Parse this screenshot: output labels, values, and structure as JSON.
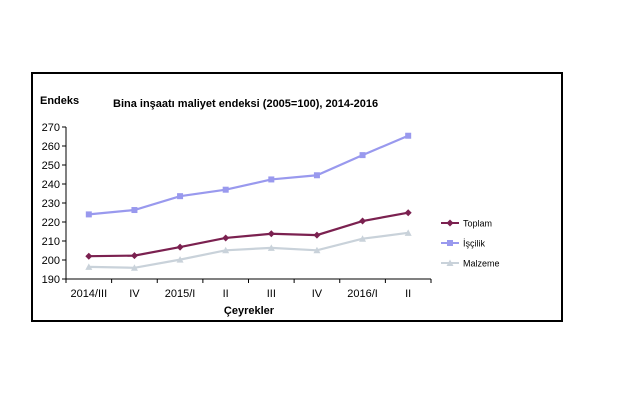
{
  "chart_data": {
    "type": "line",
    "title": "Bina inşaatı maliyet endeksi (2005=100), 2014-2016",
    "ylabel": "Endeks",
    "xlabel": "Çeyrekler",
    "categories": [
      "2014/III",
      "IV",
      "2015/I",
      "II",
      "III",
      "IV",
      "2016/I",
      "II"
    ],
    "ylim": [
      190,
      270
    ],
    "yticks": [
      190,
      200,
      210,
      220,
      230,
      240,
      250,
      260,
      270
    ],
    "grid": false,
    "legend_position": "right",
    "series": [
      {
        "name": "Toplam",
        "color": "#7B2150",
        "marker": "diamond",
        "values": [
          202,
          202.3,
          206.8,
          211.6,
          213.8,
          213.1,
          220.5,
          224.9
        ]
      },
      {
        "name": "İşçilik",
        "color": "#9999EE",
        "marker": "square",
        "values": [
          224,
          226.3,
          233.6,
          237,
          242.4,
          244.6,
          255.2,
          265.4
        ]
      },
      {
        "name": "Malzeme",
        "color": "#C9D2DA",
        "marker": "triangle",
        "values": [
          196.4,
          195.9,
          200.2,
          205.1,
          206.4,
          205.1,
          211.2,
          214.3
        ]
      }
    ]
  }
}
